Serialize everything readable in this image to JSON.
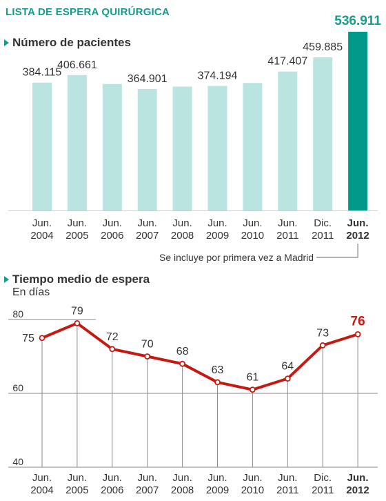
{
  "title": "LISTA DE ESPERA QUIRÚRGICA",
  "colors": {
    "accent": "#169c8c",
    "bar_light": "#b9e4df",
    "bar_highlight": "#03998a",
    "line": "#c41a12",
    "text": "#333333"
  },
  "bar_section": {
    "title": "Número de pacientes",
    "note": "Se incluye por primera vez a Madrid"
  },
  "line_section": {
    "title": "Tiempo medio de espera",
    "subtitle": "En días"
  },
  "chart_data": [
    {
      "type": "bar",
      "title": "Número de pacientes",
      "categories": [
        [
          "Jun.",
          "2004"
        ],
        [
          "Jun.",
          "2005"
        ],
        [
          "Jun.",
          "2006"
        ],
        [
          "Jun.",
          "2007"
        ],
        [
          "Jun.",
          "2008"
        ],
        [
          "Jun.",
          "2009"
        ],
        [
          "Jun.",
          "2010"
        ],
        [
          "Jun.",
          "2011"
        ],
        [
          "Dic.",
          "2011"
        ],
        [
          "Jun.",
          "2012"
        ]
      ],
      "values": [
        384115,
        406661,
        380000,
        364901,
        372000,
        374194,
        383000,
        417407,
        459885,
        536911
      ],
      "data_labels": [
        "384.115",
        "406.661",
        "",
        "364.901",
        "",
        "374.194",
        "",
        "417.407",
        "459.885",
        "536.911"
      ],
      "highlight_index": 9,
      "ylim": [
        0,
        536911
      ],
      "annotation": "Se incluye por primera vez a Madrid"
    },
    {
      "type": "line",
      "title": "Tiempo medio de espera",
      "ylabel": "En días",
      "categories": [
        [
          "Jun.",
          "2004"
        ],
        [
          "Jun.",
          "2005"
        ],
        [
          "Jun.",
          "2006"
        ],
        [
          "Jun.",
          "2007"
        ],
        [
          "Jun.",
          "2008"
        ],
        [
          "Jun.",
          "2009"
        ],
        [
          "Jun.",
          "2010"
        ],
        [
          "Jun.",
          "2011"
        ],
        [
          "Dic.",
          "2011"
        ],
        [
          "Jun.",
          "2012"
        ]
      ],
      "values": [
        75,
        79,
        72,
        70,
        68,
        63,
        61,
        64,
        73,
        76
      ],
      "data_labels": [
        "75",
        "79",
        "72",
        "70",
        "68",
        "63",
        "61",
        "64",
        "73",
        "76"
      ],
      "highlight_index": 9,
      "yticks": [
        "80",
        "60",
        "40"
      ],
      "ylim": [
        40,
        80
      ],
      "grid": true
    }
  ]
}
